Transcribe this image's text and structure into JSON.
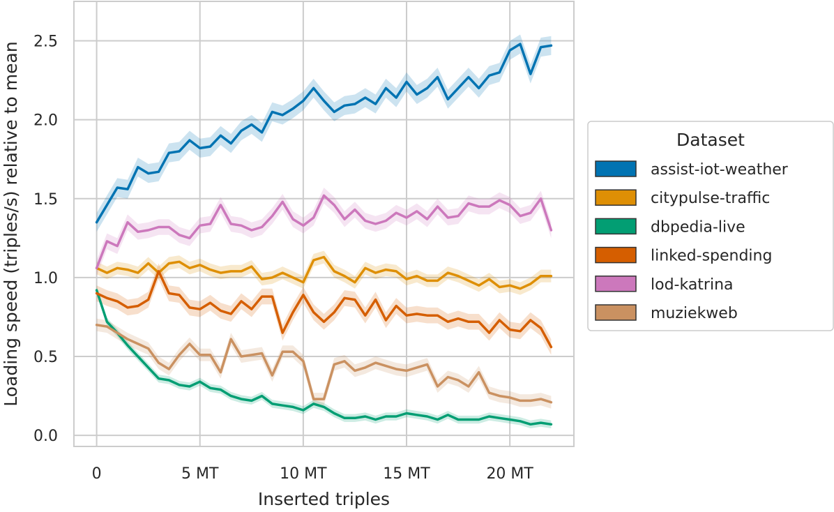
{
  "chart_data": {
    "type": "line",
    "xlabel": "Inserted triples",
    "ylabel": "Loading speed (triples/s) relative to mean",
    "xlim": [
      -1.1,
      23.1
    ],
    "ylim": [
      -0.07,
      2.75
    ],
    "x_ticks": [
      {
        "value": 0,
        "label": "0"
      },
      {
        "value": 5,
        "label": "5 MT"
      },
      {
        "value": 10,
        "label": "10 MT"
      },
      {
        "value": 15,
        "label": "15 MT"
      },
      {
        "value": 20,
        "label": "20 MT"
      }
    ],
    "y_ticks": [
      {
        "value": 0.0,
        "label": "0.0"
      },
      {
        "value": 0.5,
        "label": "0.5"
      },
      {
        "value": 1.0,
        "label": "1.0"
      },
      {
        "value": 1.5,
        "label": "1.5"
      },
      {
        "value": 2.0,
        "label": "2.0"
      },
      {
        "value": 2.5,
        "label": "2.5"
      }
    ],
    "grid": true,
    "legend": {
      "title": "Dataset",
      "placement": "outside right"
    },
    "x": [
      0,
      0.5,
      1,
      1.5,
      2,
      2.5,
      3,
      3.5,
      4,
      4.5,
      5,
      5.5,
      6,
      6.5,
      7,
      7.5,
      8,
      8.5,
      9,
      9.5,
      10,
      10.5,
      11,
      11.5,
      12,
      12.5,
      13,
      13.5,
      14,
      14.5,
      15,
      15.5,
      16,
      16.5,
      17,
      17.5,
      18,
      18.5,
      19,
      19.5,
      20,
      20.5,
      21,
      21.5,
      22
    ],
    "series": [
      {
        "name": "assist-iot-weather",
        "color": "#0173b2",
        "band": 0.06,
        "values": [
          1.35,
          1.46,
          1.57,
          1.56,
          1.7,
          1.66,
          1.67,
          1.79,
          1.8,
          1.87,
          1.82,
          1.83,
          1.9,
          1.85,
          1.93,
          1.97,
          1.92,
          2.05,
          2.03,
          2.07,
          2.12,
          2.2,
          2.12,
          2.05,
          2.09,
          2.1,
          2.14,
          2.1,
          2.2,
          2.14,
          2.24,
          2.16,
          2.2,
          2.27,
          2.13,
          2.2,
          2.27,
          2.2,
          2.28,
          2.3,
          2.44,
          2.48,
          2.29,
          2.46,
          2.47
        ]
      },
      {
        "name": "citypulse-traffic",
        "color": "#de8f05",
        "band": 0.04,
        "values": [
          1.06,
          1.03,
          1.06,
          1.05,
          1.03,
          1.09,
          1.03,
          1.09,
          1.1,
          1.06,
          1.08,
          1.05,
          1.03,
          1.04,
          1.04,
          1.07,
          0.99,
          1.0,
          1.03,
          1.0,
          0.97,
          1.11,
          1.13,
          1.04,
          1.01,
          0.97,
          1.06,
          1.03,
          1.05,
          1.04,
          0.99,
          1.01,
          0.98,
          0.98,
          1.03,
          1.01,
          0.98,
          0.95,
          0.99,
          0.94,
          0.95,
          0.93,
          0.96,
          1.01,
          1.01
        ]
      },
      {
        "name": "dbpedia-live",
        "color": "#029e73",
        "band": 0.025,
        "values": [
          0.92,
          0.72,
          0.65,
          0.57,
          0.5,
          0.43,
          0.36,
          0.35,
          0.32,
          0.31,
          0.34,
          0.3,
          0.29,
          0.25,
          0.23,
          0.22,
          0.25,
          0.2,
          0.19,
          0.18,
          0.16,
          0.2,
          0.18,
          0.14,
          0.11,
          0.11,
          0.12,
          0.1,
          0.12,
          0.12,
          0.14,
          0.13,
          0.12,
          0.1,
          0.13,
          0.1,
          0.1,
          0.1,
          0.12,
          0.11,
          0.1,
          0.09,
          0.07,
          0.08,
          0.07
        ]
      },
      {
        "name": "linked-spending",
        "color": "#d55e00",
        "band": 0.05,
        "values": [
          0.9,
          0.87,
          0.85,
          0.81,
          0.82,
          0.86,
          1.04,
          0.9,
          0.89,
          0.81,
          0.8,
          0.84,
          0.79,
          0.77,
          0.85,
          0.8,
          0.88,
          0.88,
          0.65,
          0.78,
          0.89,
          0.78,
          0.72,
          0.78,
          0.87,
          0.86,
          0.76,
          0.86,
          0.73,
          0.82,
          0.76,
          0.77,
          0.76,
          0.76,
          0.72,
          0.74,
          0.72,
          0.72,
          0.65,
          0.73,
          0.67,
          0.66,
          0.73,
          0.68,
          0.56
        ]
      },
      {
        "name": "lod-katrina",
        "color": "#cc78bc",
        "band": 0.05,
        "values": [
          1.06,
          1.23,
          1.2,
          1.35,
          1.29,
          1.3,
          1.32,
          1.32,
          1.27,
          1.25,
          1.33,
          1.34,
          1.46,
          1.34,
          1.33,
          1.3,
          1.32,
          1.39,
          1.48,
          1.37,
          1.33,
          1.38,
          1.52,
          1.46,
          1.37,
          1.43,
          1.36,
          1.34,
          1.36,
          1.41,
          1.38,
          1.42,
          1.37,
          1.45,
          1.38,
          1.39,
          1.47,
          1.45,
          1.45,
          1.49,
          1.46,
          1.39,
          1.41,
          1.5,
          1.3
        ]
      },
      {
        "name": "muziekweb",
        "color": "#ca9161",
        "band": 0.04,
        "values": [
          0.7,
          0.69,
          0.65,
          0.61,
          0.58,
          0.55,
          0.46,
          0.42,
          0.51,
          0.58,
          0.51,
          0.51,
          0.4,
          0.61,
          0.5,
          0.51,
          0.52,
          0.38,
          0.53,
          0.53,
          0.47,
          0.23,
          0.23,
          0.45,
          0.47,
          0.41,
          0.43,
          0.46,
          0.44,
          0.42,
          0.41,
          0.43,
          0.45,
          0.31,
          0.37,
          0.35,
          0.31,
          0.4,
          0.27,
          0.25,
          0.24,
          0.22,
          0.22,
          0.23,
          0.21
        ]
      }
    ]
  }
}
